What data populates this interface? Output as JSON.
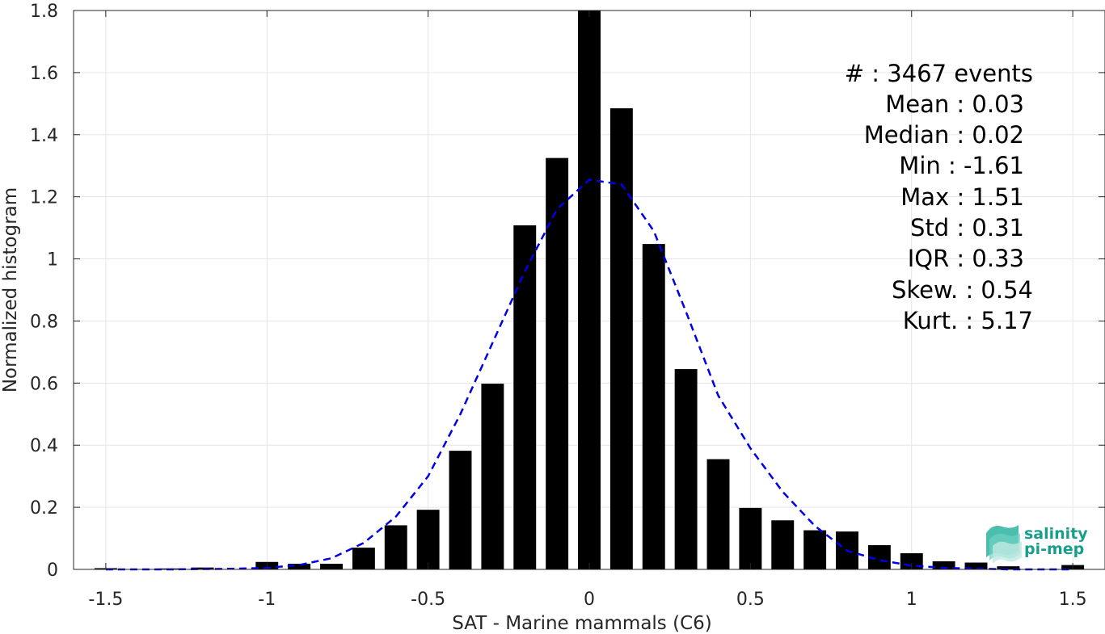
{
  "chart_data": {
    "type": "bar",
    "xlabel": "SAT - Marine mammals (C6)",
    "ylabel": "Normalized histogram",
    "xlim": [
      -1.6,
      1.6
    ],
    "ylim": [
      0,
      1.8
    ],
    "xticks": [
      -1.5,
      -1,
      -0.5,
      0,
      0.5,
      1,
      1.5
    ],
    "xtick_labels": [
      "-1.5",
      "-1",
      "-0.5",
      "0",
      "0.5",
      "1",
      "1.5"
    ],
    "yticks": [
      0,
      0.2,
      0.4,
      0.6,
      0.8,
      1,
      1.2,
      1.4,
      1.6,
      1.8
    ],
    "ytick_labels": [
      "0",
      "0.2",
      "0.4",
      "0.6",
      "0.8",
      "1",
      "1.2",
      "1.4",
      "1.6",
      "1.8"
    ],
    "grid": true,
    "bar_color": "#000000",
    "bar_width": 0.07,
    "bars": {
      "x": [
        -1.5,
        -1.3,
        -1.2,
        -1.0,
        -0.9,
        -0.8,
        -0.7,
        -0.6,
        -0.5,
        -0.4,
        -0.3,
        -0.2,
        -0.1,
        0.0,
        0.1,
        0.2,
        0.3,
        0.4,
        0.5,
        0.6,
        0.7,
        0.8,
        0.9,
        1.0,
        1.1,
        1.2,
        1.3,
        1.5
      ],
      "values": [
        0.004,
        0.003,
        0.006,
        0.024,
        0.018,
        0.018,
        0.07,
        0.142,
        0.192,
        0.382,
        0.598,
        1.108,
        1.325,
        1.8,
        1.485,
        1.048,
        0.645,
        0.355,
        0.198,
        0.158,
        0.126,
        0.122,
        0.078,
        0.052,
        0.026,
        0.022,
        0.01,
        0.014
      ]
    },
    "fit_curve": {
      "style": "dashed",
      "color": "#0000e6",
      "x": [
        -1.5,
        -1.3,
        -1.1,
        -1.0,
        -0.9,
        -0.8,
        -0.7,
        -0.6,
        -0.5,
        -0.4,
        -0.3,
        -0.2,
        -0.1,
        0.0,
        0.1,
        0.2,
        0.3,
        0.4,
        0.5,
        0.6,
        0.7,
        0.8,
        0.9,
        1.0,
        1.1,
        1.3,
        1.5
      ],
      "y": [
        0.0,
        0.0,
        0.002,
        0.005,
        0.014,
        0.036,
        0.085,
        0.17,
        0.3,
        0.5,
        0.73,
        0.96,
        1.16,
        1.255,
        1.24,
        1.09,
        0.83,
        0.56,
        0.39,
        0.25,
        0.14,
        0.06,
        0.03,
        0.012,
        0.005,
        0.0,
        0.0
      ]
    },
    "stats": [
      {
        "label": "#  : 3467 events"
      },
      {
        "label": "Mean : 0.03"
      },
      {
        "label": "Median : 0.02"
      },
      {
        "label": "Min : -1.61"
      },
      {
        "label": "Max : 1.51"
      },
      {
        "label": "Std : 0.31"
      },
      {
        "label": "IQR : 0.33"
      },
      {
        "label": "Skew. : 0.54"
      },
      {
        "label": "Kurt. : 5.17"
      }
    ]
  },
  "logo": {
    "line1": "salinity",
    "line2": "pi-mep",
    "icon": "wave-logo-icon",
    "color": "#1a9e8c"
  }
}
